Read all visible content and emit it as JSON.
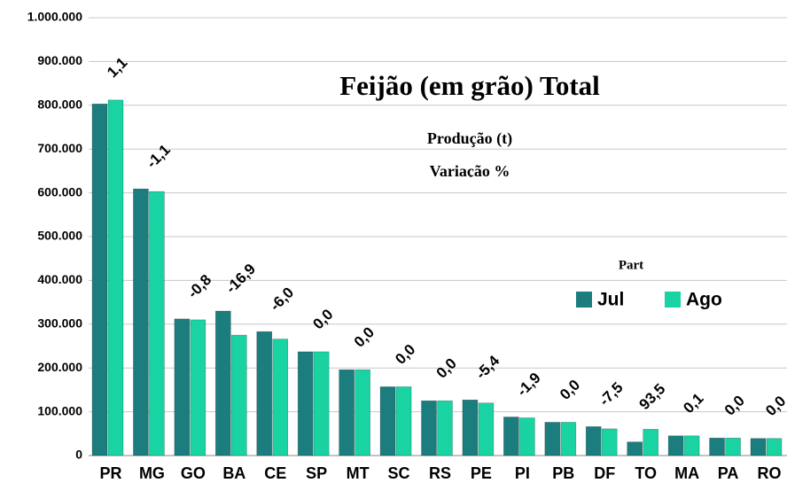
{
  "chart_data": {
    "type": "bar",
    "title": "Feijão (em grão) Total",
    "subtitle": "Produção (t)",
    "variation_title": "Variação %",
    "legend_title": "Part",
    "categories": [
      "PR",
      "MG",
      "GO",
      "BA",
      "CE",
      "SP",
      "MT",
      "SC",
      "RS",
      "PE",
      "PI",
      "PB",
      "DF",
      "TO",
      "MA",
      "PA",
      "RO"
    ],
    "series": [
      {
        "name": "Jul",
        "color": "#1b7d7d",
        "values": [
          803000,
          609000,
          312000,
          330000,
          283000,
          237000,
          196000,
          157000,
          125000,
          127000,
          88000,
          76000,
          66000,
          31000,
          45000,
          40000,
          39000
        ]
      },
      {
        "name": "Ago",
        "color": "#19d3a2",
        "values": [
          812000,
          603000,
          310000,
          275000,
          266000,
          237000,
          196000,
          157000,
          125000,
          120000,
          86000,
          76000,
          61000,
          60000,
          45000,
          40000,
          39000
        ]
      }
    ],
    "variation": {
      "values": [
        1.1,
        -1.1,
        -0.8,
        -16.9,
        -6.0,
        0.0,
        0.0,
        0.0,
        0.0,
        -5.4,
        -1.9,
        0.0,
        -7.5,
        93.5,
        0.1,
        0.0,
        0.0
      ],
      "value_labels": [
        "1,1",
        "-1,1",
        "-0,8",
        "-16,9",
        "-6,0",
        "0,0",
        "0,0",
        "0,0",
        "0,0",
        "-5,4",
        "-1,9",
        "0,0",
        "-7,5",
        "93,5",
        "0,1",
        "0,0",
        "0,0"
      ]
    },
    "ylim": [
      0,
      1000000
    ],
    "yticks": [
      0,
      {
        "value": 100000,
        "label": "100.000"
      },
      {
        "value": 200000,
        "label": "200.000"
      },
      {
        "value": 300000,
        "label": "300.000"
      },
      {
        "value": 400000,
        "label": "400.000"
      },
      {
        "value": 500000,
        "label": "500.000"
      },
      {
        "value": 600000,
        "label": "600.000"
      },
      {
        "value": 700000,
        "label": "700.000"
      },
      {
        "value": 800000,
        "label": "800.000"
      },
      {
        "value": 900000,
        "label": "900.000"
      },
      {
        "value": 1000000,
        "label": "1.000.000"
      }
    ],
    "grid": true
  }
}
